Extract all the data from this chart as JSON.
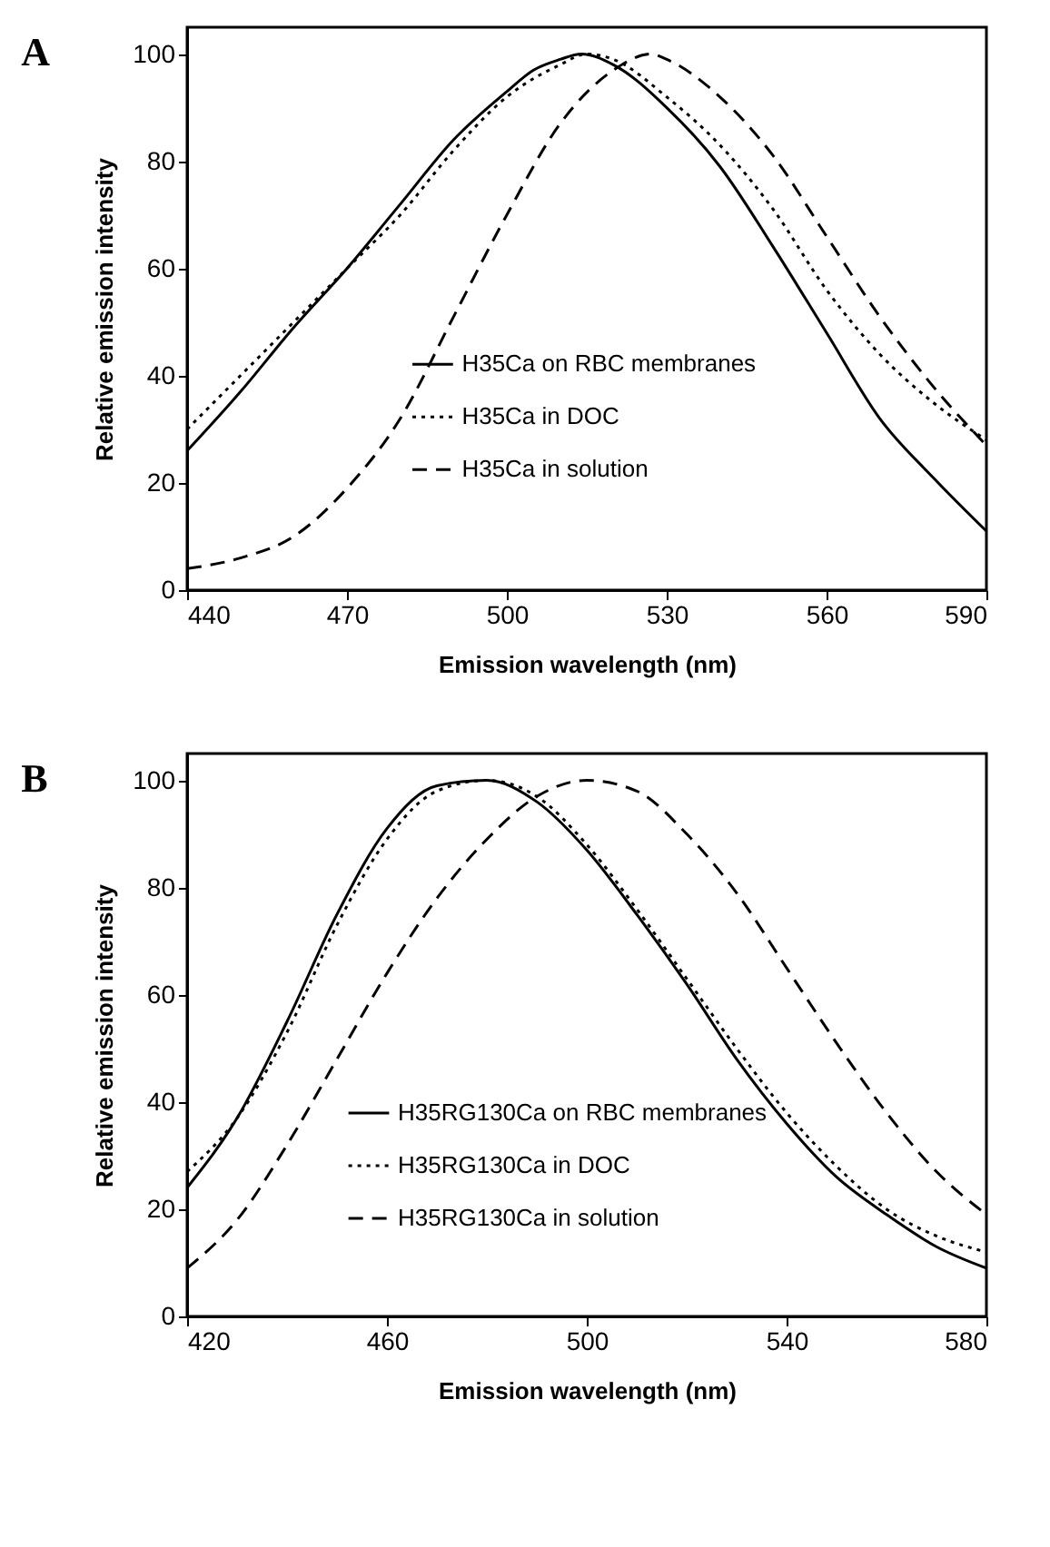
{
  "chart_data": [
    {
      "type": "line",
      "title": "A",
      "xlabel": "Emission wavelength (nm)",
      "ylabel": "Relative emission intensity",
      "xlim": [
        440,
        590
      ],
      "xticks": [
        440,
        470,
        500,
        530,
        560,
        590
      ],
      "ylim": [
        0,
        105
      ],
      "yticks": [
        0,
        20,
        40,
        60,
        80,
        100
      ],
      "grid": false,
      "legend": "bottom",
      "series": [
        {
          "name": "H35Ca on RBC membranes",
          "color": "#000000",
          "line_style": "solid",
          "x": [
            440,
            450,
            460,
            470,
            480,
            490,
            500,
            505,
            510,
            514,
            520,
            530,
            540,
            550,
            560,
            570,
            580,
            590
          ],
          "values": [
            26,
            37,
            49,
            60,
            72,
            84,
            93,
            97,
            99,
            100,
            98,
            90,
            79,
            64,
            48,
            32,
            21,
            11
          ]
        },
        {
          "name": "H35Ca in DOC",
          "color": "#000000",
          "line_style": "dotted",
          "x": [
            440,
            450,
            460,
            470,
            480,
            490,
            500,
            510,
            515,
            520,
            530,
            540,
            550,
            560,
            570,
            580,
            590
          ],
          "values": [
            30,
            40,
            50,
            60,
            70,
            82,
            92,
            98,
            100,
            99,
            92,
            83,
            71,
            56,
            44,
            35,
            28
          ]
        },
        {
          "name": "H35Ca in solution",
          "color": "#000000",
          "line_style": "dashed",
          "x": [
            440,
            450,
            460,
            470,
            480,
            490,
            500,
            510,
            520,
            527,
            530,
            540,
            550,
            560,
            570,
            580,
            590
          ],
          "values": [
            4,
            6,
            10,
            19,
            32,
            51,
            70,
            87,
            97,
            100,
            99,
            92,
            81,
            66,
            51,
            38,
            27
          ]
        }
      ]
    },
    {
      "type": "line",
      "title": "B",
      "xlabel": "Emission wavelength (nm)",
      "ylabel": "Relative emission intensity",
      "xlim": [
        420,
        580
      ],
      "xticks": [
        420,
        460,
        500,
        540,
        580
      ],
      "ylim": [
        0,
        105
      ],
      "yticks": [
        0,
        20,
        40,
        60,
        80,
        100
      ],
      "grid": false,
      "legend": "bottom left",
      "series": [
        {
          "name": "H35RG130Ca on RBC membranes",
          "color": "#000000",
          "line_style": "solid",
          "x": [
            420,
            430,
            440,
            450,
            460,
            470,
            480,
            490,
            500,
            510,
            520,
            530,
            540,
            550,
            560,
            570,
            580
          ],
          "values": [
            24,
            37,
            55,
            75,
            91,
            99,
            100,
            96,
            87,
            75,
            62,
            48,
            36,
            26,
            19,
            13,
            9
          ]
        },
        {
          "name": "H35RG130Ca in DOC",
          "color": "#000000",
          "line_style": "dotted",
          "x": [
            420,
            430,
            440,
            450,
            460,
            470,
            480,
            490,
            500,
            510,
            520,
            530,
            540,
            550,
            560,
            570,
            580
          ],
          "values": [
            27,
            37,
            53,
            73,
            89,
            98,
            100,
            97,
            88,
            76,
            63,
            50,
            38,
            28,
            20,
            15,
            12
          ]
        },
        {
          "name": "H35RG130Ca in solution",
          "color": "#000000",
          "line_style": "dashed",
          "x": [
            420,
            430,
            440,
            450,
            460,
            470,
            480,
            490,
            500,
            510,
            520,
            530,
            540,
            550,
            560,
            570,
            580
          ],
          "values": [
            9,
            18,
            32,
            48,
            64,
            78,
            89,
            97,
            100,
            98,
            90,
            79,
            65,
            51,
            38,
            27,
            19
          ]
        }
      ]
    }
  ]
}
